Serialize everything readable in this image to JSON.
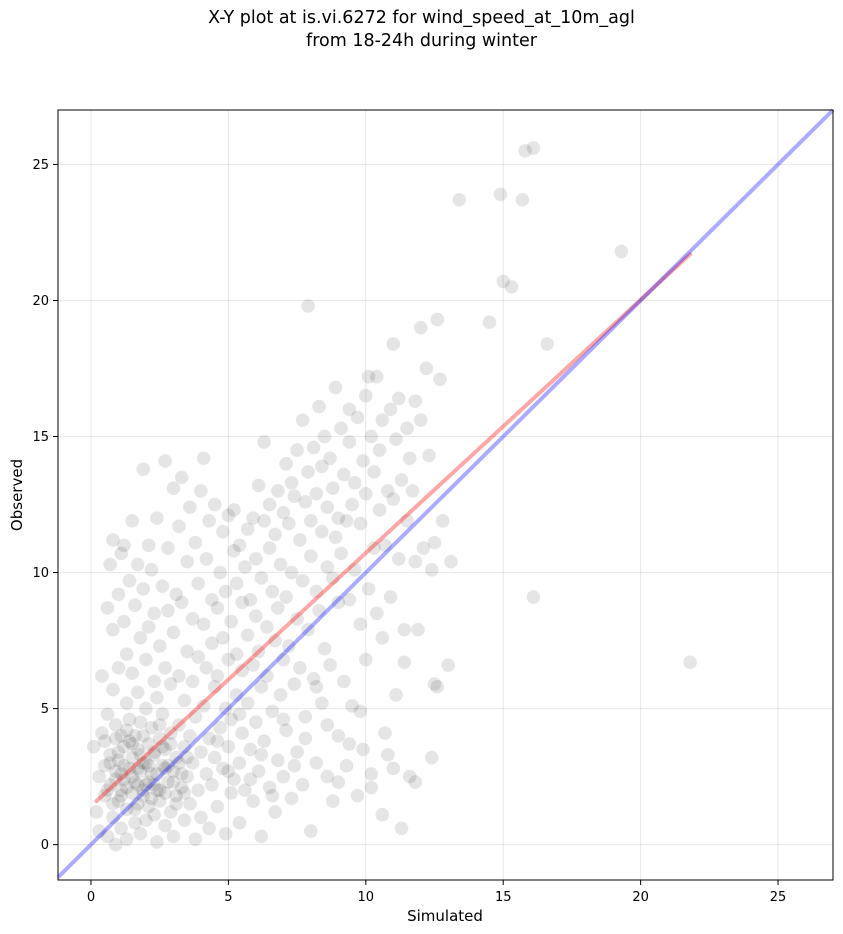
{
  "chart_data": {
    "type": "scatter",
    "title_line1": "X-Y plot at is.vi.6272 for wind_speed_at_10m_agl",
    "title_line2": "from 18-24h during winter",
    "xlabel": "Simulated",
    "ylabel": "Observed",
    "xlim": [
      -1.2,
      27
    ],
    "ylim": [
      -1.3,
      27
    ],
    "xticks": [
      0,
      5,
      10,
      15,
      20,
      25
    ],
    "yticks": [
      0,
      5,
      10,
      15,
      20,
      25
    ],
    "grid": true,
    "point_color": "#000000",
    "fit_line": {
      "color": "#ff0000",
      "x": [
        0.2,
        21.8
      ],
      "y": [
        1.6,
        21.7
      ]
    },
    "identity_line": {
      "color": "#0000ff",
      "x": [
        -1.2,
        27
      ],
      "y": [
        -1.2,
        27
      ]
    },
    "points": [
      [
        0.1,
        3.6
      ],
      [
        0.2,
        1.2
      ],
      [
        0.3,
        2.5
      ],
      [
        0.3,
        0.5
      ],
      [
        0.4,
        6.2
      ],
      [
        0.4,
        4.1
      ],
      [
        0.5,
        2.9
      ],
      [
        0.5,
        3.8
      ],
      [
        0.5,
        1.8
      ],
      [
        0.6,
        0.3
      ],
      [
        0.6,
        8.7
      ],
      [
        0.6,
        4.8
      ],
      [
        0.7,
        10.3
      ],
      [
        0.7,
        2.2
      ],
      [
        0.7,
        3.3
      ],
      [
        0.8,
        11.2
      ],
      [
        0.8,
        1.0
      ],
      [
        0.8,
        5.7
      ],
      [
        0.8,
        7.9
      ],
      [
        0.9,
        2.7
      ],
      [
        0.9,
        0.0
      ],
      [
        0.9,
        4.4
      ],
      [
        1.0,
        9.2
      ],
      [
        1.0,
        1.6
      ],
      [
        1.0,
        3.1
      ],
      [
        1.0,
        6.5
      ],
      [
        1.1,
        10.7
      ],
      [
        1.1,
        2.0
      ],
      [
        1.1,
        0.6
      ],
      [
        1.1,
        4.0
      ],
      [
        1.2,
        11.0
      ],
      [
        1.2,
        8.2
      ],
      [
        1.2,
        2.4
      ],
      [
        1.2,
        3.6
      ],
      [
        1.3,
        1.3
      ],
      [
        1.3,
        5.2
      ],
      [
        1.3,
        7.0
      ],
      [
        1.3,
        0.2
      ],
      [
        1.4,
        9.7
      ],
      [
        1.4,
        2.8
      ],
      [
        1.4,
        4.6
      ],
      [
        1.5,
        11.9
      ],
      [
        1.5,
        1.9
      ],
      [
        1.5,
        3.2
      ],
      [
        1.5,
        6.3
      ],
      [
        1.6,
        0.8
      ],
      [
        1.6,
        8.8
      ],
      [
        1.6,
        2.3
      ],
      [
        1.6,
        4.0
      ],
      [
        1.7,
        10.3
      ],
      [
        1.7,
        1.5
      ],
      [
        1.7,
        3.5
      ],
      [
        1.7,
        5.6
      ],
      [
        1.8,
        2.7
      ],
      [
        1.8,
        7.6
      ],
      [
        1.8,
        0.4
      ],
      [
        1.8,
        4.5
      ],
      [
        1.9,
        13.8
      ],
      [
        1.9,
        1.8
      ],
      [
        1.9,
        9.4
      ],
      [
        1.9,
        3.0
      ],
      [
        2.0,
        6.8
      ],
      [
        2.0,
        2.2
      ],
      [
        2.0,
        5.0
      ],
      [
        2.0,
        0.9
      ],
      [
        2.1,
        11.0
      ],
      [
        2.1,
        3.7
      ],
      [
        2.1,
        8.0
      ],
      [
        2.1,
        1.4
      ],
      [
        2.2,
        2.6
      ],
      [
        2.2,
        4.3
      ],
      [
        2.2,
        10.1
      ],
      [
        2.3,
        6.0
      ],
      [
        2.3,
        1.1
      ],
      [
        2.3,
        3.3
      ],
      [
        2.3,
        8.5
      ],
      [
        2.4,
        12.0
      ],
      [
        2.4,
        2.0
      ],
      [
        2.4,
        5.4
      ],
      [
        2.4,
        0.1
      ],
      [
        2.5,
        3.9
      ],
      [
        2.5,
        7.3
      ],
      [
        2.5,
        1.6
      ],
      [
        2.6,
        9.5
      ],
      [
        2.6,
        2.9
      ],
      [
        2.6,
        4.8
      ],
      [
        2.7,
        14.1
      ],
      [
        2.7,
        0.7
      ],
      [
        2.7,
        6.5
      ],
      [
        2.7,
        3.5
      ],
      [
        2.8,
        10.9
      ],
      [
        2.8,
        2.3
      ],
      [
        2.8,
        8.6
      ],
      [
        2.9,
        1.2
      ],
      [
        2.9,
        4.1
      ],
      [
        2.9,
        5.9
      ],
      [
        3.0,
        13.1
      ],
      [
        3.0,
        2.7
      ],
      [
        3.0,
        7.8
      ],
      [
        3.0,
        0.3
      ],
      [
        3.1,
        9.2
      ],
      [
        3.1,
        3.2
      ],
      [
        3.1,
        1.8
      ],
      [
        3.2,
        11.7
      ],
      [
        3.2,
        6.2
      ],
      [
        3.2,
        4.4
      ],
      [
        3.3,
        2.1
      ],
      [
        3.3,
        8.9
      ],
      [
        3.3,
        13.5
      ],
      [
        3.4,
        3.6
      ],
      [
        3.4,
        0.9
      ],
      [
        3.4,
        5.3
      ],
      [
        3.5,
        10.4
      ],
      [
        3.5,
        7.1
      ],
      [
        3.5,
        2.5
      ],
      [
        3.6,
        12.4
      ],
      [
        3.6,
        4.0
      ],
      [
        3.6,
        1.5
      ],
      [
        3.7,
        8.3
      ],
      [
        3.7,
        6.0
      ],
      [
        3.7,
        3.0
      ],
      [
        3.8,
        11.1
      ],
      [
        3.8,
        0.2
      ],
      [
        3.8,
        4.7
      ],
      [
        3.9,
        9.6
      ],
      [
        3.9,
        2.0
      ],
      [
        3.9,
        6.9
      ],
      [
        4.0,
        13.0
      ],
      [
        4.0,
        3.4
      ],
      [
        4.0,
        1.0
      ],
      [
        4.1,
        14.2
      ],
      [
        4.1,
        8.1
      ],
      [
        4.1,
        5.1
      ],
      [
        4.2,
        10.5
      ],
      [
        4.2,
        2.6
      ],
      [
        4.2,
        6.5
      ],
      [
        4.3,
        11.9
      ],
      [
        4.3,
        3.9
      ],
      [
        4.3,
        0.6
      ],
      [
        4.4,
        7.4
      ],
      [
        4.4,
        9.0
      ],
      [
        4.4,
        2.2
      ],
      [
        4.5,
        5.8
      ],
      [
        4.5,
        12.5
      ],
      [
        4.5,
        3.2
      ],
      [
        4.6,
        8.7
      ],
      [
        4.6,
        1.4
      ],
      [
        4.6,
        6.2
      ],
      [
        4.7,
        10.0
      ],
      [
        4.7,
        4.3
      ],
      [
        4.8,
        11.5
      ],
      [
        4.8,
        2.8
      ],
      [
        4.8,
        7.6
      ],
      [
        4.9,
        5.0
      ],
      [
        4.9,
        0.4
      ],
      [
        4.9,
        9.3
      ],
      [
        5.0,
        12.1
      ],
      [
        5.0,
        3.6
      ],
      [
        5.0,
        6.8
      ],
      [
        5.1,
        8.2
      ],
      [
        5.1,
        1.9
      ],
      [
        5.1,
        4.6
      ],
      [
        5.2,
        10.8
      ],
      [
        5.2,
        12.3
      ],
      [
        5.2,
        2.4
      ],
      [
        5.3,
        7.0
      ],
      [
        5.3,
        5.5
      ],
      [
        5.3,
        9.6
      ],
      [
        5.4,
        3.0
      ],
      [
        5.4,
        11.0
      ],
      [
        5.4,
        0.8
      ],
      [
        5.5,
        6.4
      ],
      [
        5.5,
        8.9
      ],
      [
        5.5,
        4.1
      ],
      [
        5.6,
        10.2
      ],
      [
        5.6,
        2.0
      ],
      [
        5.7,
        7.7
      ],
      [
        5.7,
        5.2
      ],
      [
        5.7,
        11.6
      ],
      [
        5.8,
        3.5
      ],
      [
        5.8,
        9.0
      ],
      [
        5.9,
        1.6
      ],
      [
        5.9,
        6.6
      ],
      [
        5.9,
        12.0
      ],
      [
        6.0,
        4.5
      ],
      [
        6.0,
        8.4
      ],
      [
        6.0,
        10.5
      ],
      [
        6.1,
        2.7
      ],
      [
        6.1,
        7.1
      ],
      [
        6.1,
        13.2
      ],
      [
        6.2,
        5.8
      ],
      [
        6.2,
        9.8
      ],
      [
        6.2,
        0.3
      ],
      [
        6.3,
        11.9
      ],
      [
        6.3,
        14.8
      ],
      [
        6.3,
        3.8
      ],
      [
        6.4,
        8.0
      ],
      [
        6.4,
        6.2
      ],
      [
        6.5,
        10.9
      ],
      [
        6.5,
        2.1
      ],
      [
        6.5,
        12.5
      ],
      [
        6.6,
        4.9
      ],
      [
        6.6,
        9.3
      ],
      [
        6.7,
        7.5
      ],
      [
        6.7,
        11.4
      ],
      [
        6.7,
        1.2
      ],
      [
        6.8,
        3.1
      ],
      [
        6.8,
        13.0
      ],
      [
        6.8,
        8.7
      ],
      [
        6.9,
        5.5
      ],
      [
        6.9,
        10.3
      ],
      [
        7.0,
        12.2
      ],
      [
        7.0,
        6.8
      ],
      [
        7.0,
        2.5
      ],
      [
        7.1,
        14.0
      ],
      [
        7.1,
        9.1
      ],
      [
        7.1,
        4.2
      ],
      [
        7.2,
        11.8
      ],
      [
        7.2,
        7.3
      ],
      [
        7.3,
        13.3
      ],
      [
        7.3,
        1.7
      ],
      [
        7.3,
        10.0
      ],
      [
        7.4,
        5.9
      ],
      [
        7.4,
        12.8
      ],
      [
        7.5,
        8.3
      ],
      [
        7.5,
        3.4
      ],
      [
        7.5,
        14.5
      ],
      [
        7.6,
        11.2
      ],
      [
        7.6,
        6.5
      ],
      [
        7.7,
        15.6
      ],
      [
        7.7,
        9.7
      ],
      [
        7.7,
        2.2
      ],
      [
        7.8,
        12.6
      ],
      [
        7.8,
        4.7
      ],
      [
        7.9,
        19.8
      ],
      [
        7.9,
        13.7
      ],
      [
        7.9,
        7.9
      ],
      [
        8.0,
        10.6
      ],
      [
        8.0,
        0.5
      ],
      [
        8.0,
        11.9
      ],
      [
        8.1,
        14.6
      ],
      [
        8.1,
        6.1
      ],
      [
        8.2,
        9.3
      ],
      [
        8.2,
        12.9
      ],
      [
        8.2,
        3.0
      ],
      [
        8.3,
        16.1
      ],
      [
        8.3,
        8.6
      ],
      [
        8.4,
        11.5
      ],
      [
        8.4,
        5.2
      ],
      [
        8.4,
        13.9
      ],
      [
        8.5,
        15.0
      ],
      [
        8.5,
        7.2
      ],
      [
        8.6,
        10.2
      ],
      [
        8.6,
        2.5
      ],
      [
        8.6,
        12.4
      ],
      [
        8.7,
        14.2
      ],
      [
        8.7,
        6.6
      ],
      [
        8.8,
        9.8
      ],
      [
        8.8,
        13.1
      ],
      [
        8.8,
        1.6
      ],
      [
        8.9,
        11.3
      ],
      [
        8.9,
        16.8
      ],
      [
        9.0,
        8.9
      ],
      [
        9.0,
        12.0
      ],
      [
        9.0,
        4.0
      ],
      [
        9.1,
        15.3
      ],
      [
        9.1,
        10.7
      ],
      [
        9.2,
        13.6
      ],
      [
        9.2,
        6.0
      ],
      [
        9.3,
        11.9
      ],
      [
        9.3,
        2.9
      ],
      [
        9.4,
        14.8
      ],
      [
        9.4,
        9.0
      ],
      [
        9.4,
        16.0
      ],
      [
        9.5,
        12.5
      ],
      [
        9.5,
        5.1
      ],
      [
        9.6,
        13.3
      ],
      [
        9.6,
        10.1
      ],
      [
        9.7,
        15.7
      ],
      [
        9.7,
        1.8
      ],
      [
        9.8,
        11.8
      ],
      [
        9.8,
        8.1
      ],
      [
        9.9,
        14.1
      ],
      [
        9.9,
        3.5
      ],
      [
        10.0,
        16.5
      ],
      [
        10.0,
        12.9
      ],
      [
        10.0,
        6.8
      ],
      [
        10.1,
        17.2
      ],
      [
        10.1,
        9.4
      ],
      [
        10.2,
        15.0
      ],
      [
        10.2,
        2.1
      ],
      [
        10.3,
        13.7
      ],
      [
        10.3,
        10.9
      ],
      [
        10.4,
        17.2
      ],
      [
        10.4,
        8.5
      ],
      [
        10.5,
        14.5
      ],
      [
        10.5,
        12.3
      ],
      [
        10.6,
        7.6
      ],
      [
        10.6,
        15.6
      ],
      [
        10.7,
        11.0
      ],
      [
        10.7,
        4.1
      ],
      [
        10.8,
        13.0
      ],
      [
        10.8,
        3.3
      ],
      [
        10.9,
        16.0
      ],
      [
        10.9,
        9.1
      ],
      [
        11.0,
        18.4
      ],
      [
        11.0,
        12.7
      ],
      [
        11.1,
        5.5
      ],
      [
        11.1,
        14.9
      ],
      [
        11.2,
        16.4
      ],
      [
        11.2,
        10.5
      ],
      [
        11.3,
        0.6
      ],
      [
        11.3,
        13.4
      ],
      [
        11.4,
        7.9
      ],
      [
        11.5,
        15.3
      ],
      [
        11.5,
        11.9
      ],
      [
        11.6,
        14.2
      ],
      [
        11.6,
        2.5
      ],
      [
        11.7,
        13.0
      ],
      [
        11.8,
        16.3
      ],
      [
        11.8,
        10.4
      ],
      [
        11.9,
        7.9
      ],
      [
        12.0,
        19.0
      ],
      [
        12.0,
        15.6
      ],
      [
        12.1,
        10.9
      ],
      [
        12.2,
        17.5
      ],
      [
        12.3,
        14.3
      ],
      [
        12.4,
        10.1
      ],
      [
        12.4,
        3.2
      ],
      [
        12.5,
        11.1
      ],
      [
        12.6,
        19.3
      ],
      [
        12.6,
        5.8
      ],
      [
        12.7,
        17.1
      ],
      [
        12.8,
        11.9
      ],
      [
        13.0,
        6.6
      ],
      [
        13.1,
        10.4
      ],
      [
        13.4,
        23.7
      ],
      [
        14.5,
        19.2
      ],
      [
        14.9,
        23.9
      ],
      [
        15.0,
        20.7
      ],
      [
        15.3,
        20.5
      ],
      [
        15.7,
        23.7
      ],
      [
        15.8,
        25.5
      ],
      [
        16.1,
        25.6
      ],
      [
        16.1,
        9.1
      ],
      [
        16.6,
        18.4
      ],
      [
        19.3,
        21.8
      ],
      [
        21.8,
        6.7
      ],
      [
        0.6,
        2.0
      ],
      [
        0.7,
        3.0
      ],
      [
        0.8,
        1.5
      ],
      [
        0.9,
        2.4
      ],
      [
        1.0,
        3.4
      ],
      [
        1.1,
        1.8
      ],
      [
        1.2,
        2.9
      ],
      [
        1.3,
        2.1
      ],
      [
        1.4,
        3.8
      ],
      [
        1.5,
        2.5
      ],
      [
        1.6,
        1.3
      ],
      [
        1.7,
        2.8
      ],
      [
        1.8,
        3.3
      ],
      [
        1.9,
        2.0
      ],
      [
        2.0,
        3.0
      ],
      [
        2.1,
        2.3
      ],
      [
        2.2,
        1.7
      ],
      [
        2.3,
        3.4
      ],
      [
        2.4,
        2.6
      ],
      [
        2.5,
        2.0
      ],
      [
        2.6,
        3.6
      ],
      [
        2.7,
        1.9
      ],
      [
        2.8,
        2.9
      ],
      [
        2.9,
        3.7
      ],
      [
        3.0,
        2.3
      ],
      [
        3.1,
        1.5
      ],
      [
        3.2,
        3.0
      ],
      [
        3.3,
        2.6
      ],
      [
        3.4,
        1.9
      ],
      [
        3.5,
        3.2
      ],
      [
        0.9,
        3.9
      ],
      [
        1.1,
        2.6
      ],
      [
        1.3,
        4.2
      ],
      [
        1.5,
        3.7
      ],
      [
        1.7,
        2.2
      ],
      [
        1.9,
        4.0
      ],
      [
        2.1,
        2.9
      ],
      [
        2.3,
        2.2
      ],
      [
        2.5,
        4.4
      ],
      [
        2.7,
        2.8
      ],
      [
        4.6,
        3.8
      ],
      [
        5.0,
        2.7
      ],
      [
        5.4,
        4.8
      ],
      [
        5.8,
        2.4
      ],
      [
        6.2,
        3.3
      ],
      [
        6.6,
        1.8
      ],
      [
        7.0,
        4.6
      ],
      [
        7.4,
        2.9
      ],
      [
        7.8,
        3.9
      ],
      [
        8.2,
        5.8
      ],
      [
        8.6,
        4.4
      ],
      [
        9.0,
        2.3
      ],
      [
        9.4,
        3.7
      ],
      [
        9.8,
        4.9
      ],
      [
        10.2,
        2.6
      ],
      [
        10.6,
        1.1
      ],
      [
        11.0,
        2.8
      ],
      [
        11.4,
        6.7
      ],
      [
        11.8,
        2.3
      ],
      [
        12.5,
        5.9
      ]
    ]
  }
}
